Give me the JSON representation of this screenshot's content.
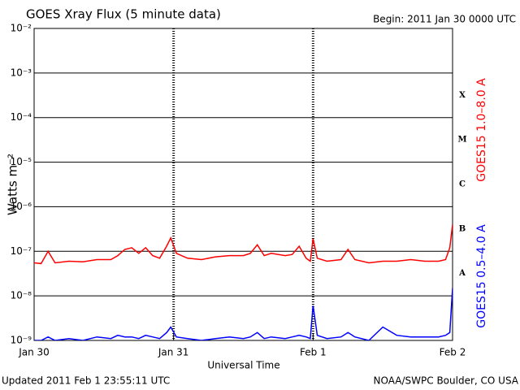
{
  "chart_data": {
    "type": "line",
    "title": "GOES Xray Flux (5 minute data)",
    "subtitle": "Begin:  2011 Jan 30 0000 UTC",
    "x_label": "Universal Time",
    "y_label": "Watts m⁻²",
    "footer_left": "Updated 2011 Feb  1 23:55:11 UTC",
    "footer_right": "NOAA/SWPC Boulder, CO USA",
    "flare_classes": [
      "A",
      "B",
      "C",
      "M",
      "X"
    ],
    "log_y": true,
    "grid": true,
    "ylim": [
      1e-09,
      0.01
    ],
    "yticks": [
      {
        "value": 1e-09,
        "label": "10⁻⁹"
      },
      {
        "value": 1e-08,
        "label": "10⁻⁸"
      },
      {
        "value": 1e-07,
        "label": "10⁻⁷"
      },
      {
        "value": 1e-06,
        "label": "10⁻⁶"
      },
      {
        "value": 1e-05,
        "label": "10⁻⁵"
      },
      {
        "value": 0.0001,
        "label": "10⁻⁴"
      },
      {
        "value": 0.001,
        "label": "10⁻³"
      },
      {
        "value": 0.01,
        "label": "10⁻²"
      }
    ],
    "xlim": [
      0,
      3
    ],
    "xticks": [
      {
        "value": 0,
        "label": "Jan 30"
      },
      {
        "value": 1,
        "label": "Jan 31"
      },
      {
        "value": 2,
        "label": "Feb 1"
      },
      {
        "value": 3,
        "label": "Feb 2"
      }
    ],
    "x": [
      0,
      0.05,
      0.1,
      0.15,
      0.25,
      0.35,
      0.45,
      0.55,
      0.6,
      0.65,
      0.7,
      0.75,
      0.8,
      0.85,
      0.9,
      0.95,
      0.98,
      1.02,
      1.1,
      1.2,
      1.3,
      1.4,
      1.5,
      1.55,
      1.6,
      1.65,
      1.7,
      1.8,
      1.85,
      1.9,
      1.95,
      1.98,
      2.0,
      2.03,
      2.1,
      2.2,
      2.25,
      2.3,
      2.4,
      2.5,
      2.6,
      2.7,
      2.8,
      2.9,
      2.95,
      2.98,
      3.0
    ],
    "series": [
      {
        "name": "GOES15 1.0–8.0 A",
        "color": "#ff0000",
        "values": [
          5.5e-08,
          5.3e-08,
          1e-07,
          5.5e-08,
          6e-08,
          5.8e-08,
          6.5e-08,
          6.5e-08,
          8e-08,
          1.1e-07,
          1.2e-07,
          9e-08,
          1.2e-07,
          8e-08,
          7e-08,
          1.3e-07,
          2e-07,
          9e-08,
          7e-08,
          6.5e-08,
          7.5e-08,
          8e-08,
          8e-08,
          9e-08,
          1.4e-07,
          8e-08,
          9e-08,
          8e-08,
          8.5e-08,
          1.3e-07,
          7e-08,
          6e-08,
          1.9e-07,
          7e-08,
          6e-08,
          6.5e-08,
          1.1e-07,
          6.5e-08,
          5.5e-08,
          6e-08,
          6e-08,
          6.5e-08,
          6e-08,
          6e-08,
          6.5e-08,
          1.2e-07,
          4e-07
        ]
      },
      {
        "name": "GOES15 0.5–4.0 A",
        "color": "#0000ff",
        "values": [
          1e-09,
          1e-09,
          1.2e-09,
          1e-09,
          1.1e-09,
          1e-09,
          1.2e-09,
          1.1e-09,
          1.3e-09,
          1.2e-09,
          1.2e-09,
          1.1e-09,
          1.3e-09,
          1.2e-09,
          1.1e-09,
          1.5e-09,
          2e-09,
          1.2e-09,
          1.1e-09,
          1e-09,
          1.1e-09,
          1.2e-09,
          1.1e-09,
          1.2e-09,
          1.5e-09,
          1.1e-09,
          1.2e-09,
          1.1e-09,
          1.2e-09,
          1.3e-09,
          1.2e-09,
          1.1e-09,
          6e-09,
          1.3e-09,
          1.1e-09,
          1.2e-09,
          1.5e-09,
          1.2e-09,
          1e-09,
          2e-09,
          1.3e-09,
          1.2e-09,
          1.2e-09,
          1.2e-09,
          1.3e-09,
          1.5e-09,
          1.5e-08
        ]
      }
    ]
  }
}
